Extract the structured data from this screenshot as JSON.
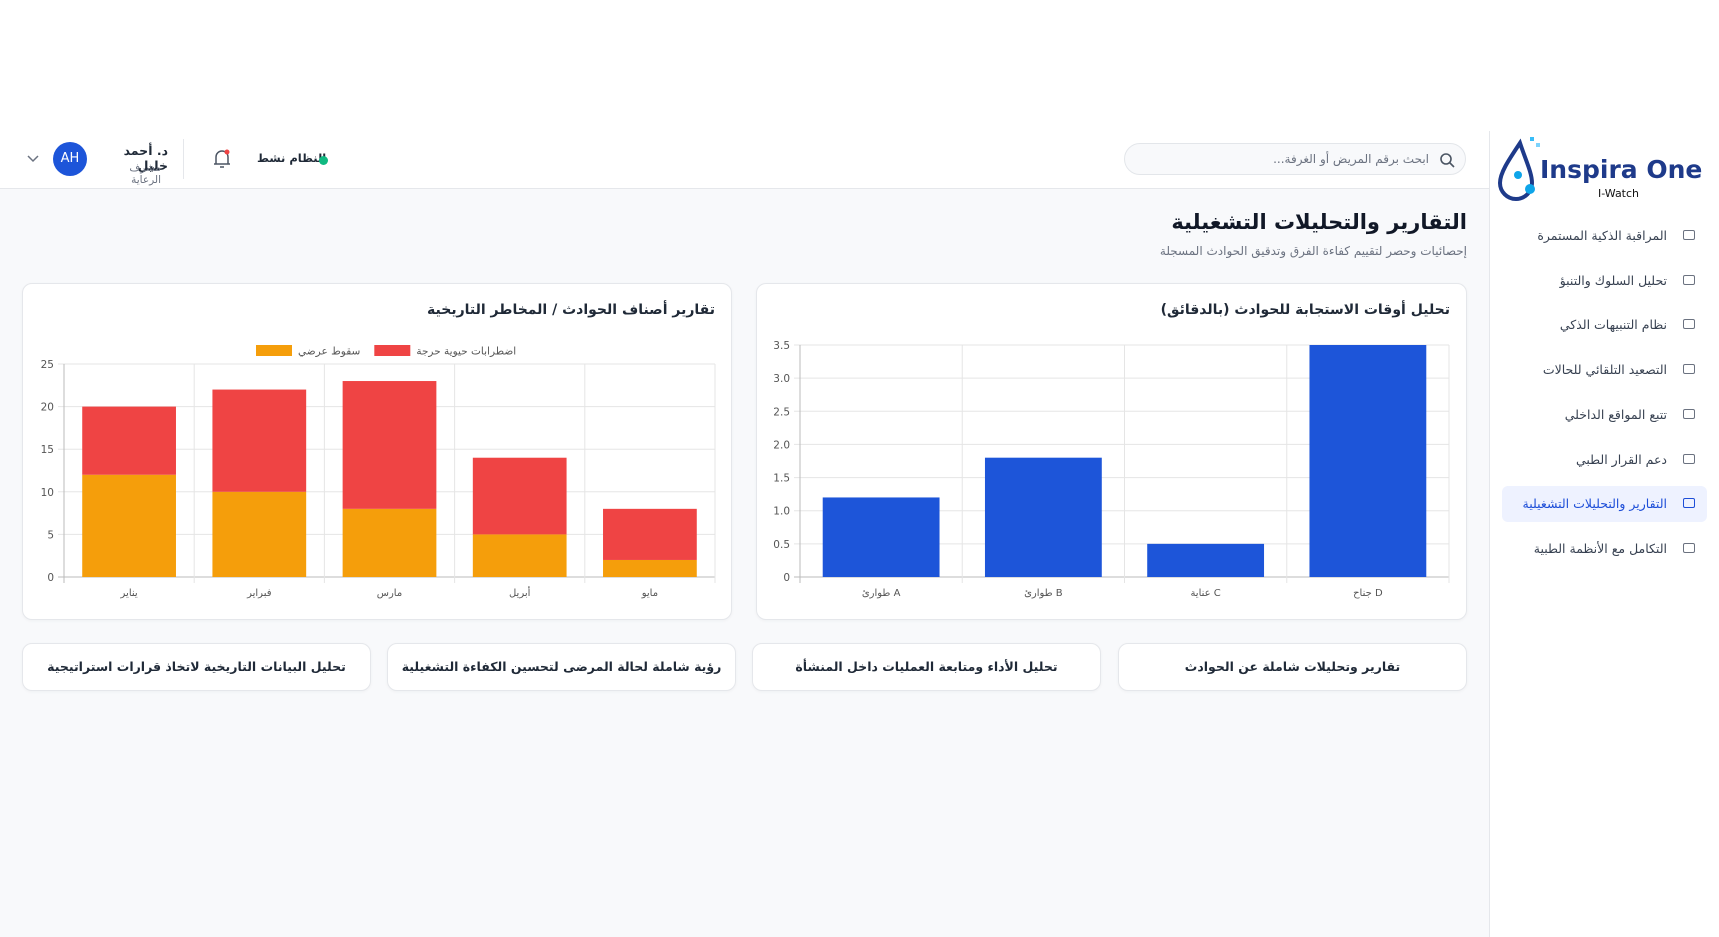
{
  "sidebar": {
    "logo": "Inspira One",
    "logo_sub": "I-Watch",
    "items": [
      "المراقبة الذكية المستمرة",
      "تحليل السلوك والتنبؤ",
      "نظام التنبيهات الذكي",
      "التصعيد التلقائي للحالات",
      "تتبع المواقع الداخلي",
      "دعم القرار الطبي",
      "التقارير والتحليلات التشغيلية",
      "التكامل مع الأنظمة الطبية"
    ]
  },
  "header": {
    "search_placeholder": "ابحث برقم المريض أو الغرفة...",
    "status": "النظام نشط",
    "user_name": "د. أحمد خليل",
    "user_role": "مشرف الرعاية",
    "avatar": "AH"
  },
  "page": {
    "title": "التقارير والتحليلات التشغيلية",
    "subtitle": "إحصائيات وحصر لتقييم كفاءة الفرق وتدقيق الحوادث المسجلة"
  },
  "chart_data": [
    {
      "type": "bar",
      "title": "تحليل أوقات الاستجابة للحوادث (بالدقائق)",
      "categories": [
        "طوارئ A",
        "طوارئ B",
        "عناية C",
        "جناح D"
      ],
      "values": [
        1.2,
        1.8,
        0.5,
        3.5
      ],
      "color": "#1d55d9",
      "ylim": [
        0,
        3.5
      ],
      "yticks": [
        0,
        0.5,
        {
          "value": 1,
          "label": "1.0"
        },
        1.5,
        {
          "value": 2,
          "label": "2.0"
        },
        2.5,
        {
          "value": 3,
          "label": "3.0"
        },
        3.5
      ],
      "grid": true
    },
    {
      "type": "bar",
      "stacked": true,
      "title": "تقارير أصناف الحوادث / المخاطر التاريخية",
      "categories": [
        "يناير",
        "فبراير",
        "مارس",
        "أبريل",
        "مايو"
      ],
      "series": [
        {
          "name": "سقوط عرضي",
          "color": "#f59e0b",
          "values": [
            12,
            10,
            8,
            5,
            2
          ]
        },
        {
          "name": "اضطرابات حيوية حرجة",
          "color": "#ef4444",
          "values": [
            8,
            12,
            15,
            9,
            6
          ]
        }
      ],
      "ylim": [
        0,
        25
      ],
      "yticks": [
        0,
        5,
        10,
        15,
        20,
        25
      ],
      "grid": true,
      "legend": "top"
    }
  ],
  "cards": [
    "تقارير وتحليلات شاملة عن الحوادث",
    "تحليل الأداء ومتابعة العمليات داخل المنشأة",
    "رؤية شاملة لحالة المرضى لتحسين الكفاءة التشغيلية",
    "تحليل البيانات التاريخية لاتخاذ قرارات استراتيجية"
  ]
}
